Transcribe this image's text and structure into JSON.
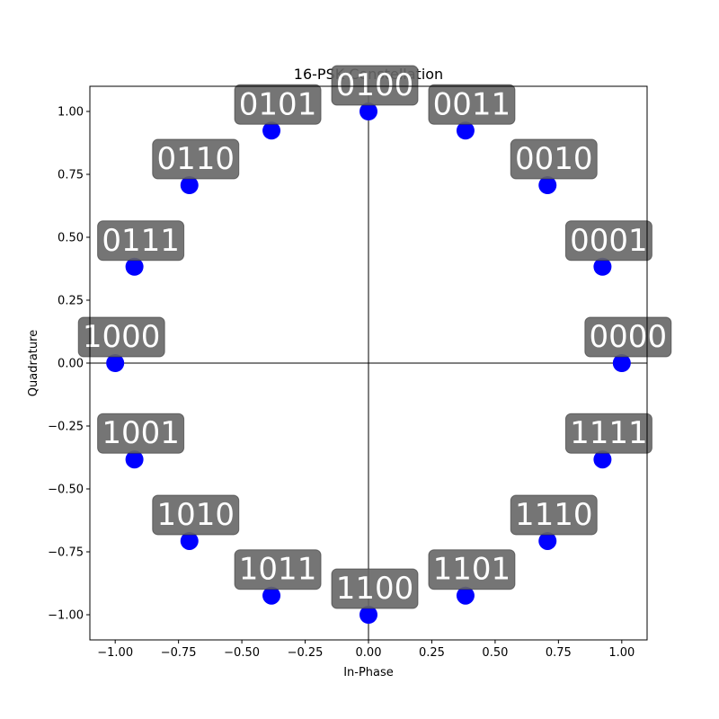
{
  "chart_data": {
    "type": "scatter",
    "title": "16-PSK Constellation",
    "xlabel": "In-Phase",
    "ylabel": "Quadrature",
    "xlim": [
      -1.1,
      1.1
    ],
    "ylim": [
      -1.1,
      1.1
    ],
    "xticks": [
      "−1.00",
      "−0.75",
      "−0.50",
      "−0.25",
      "0.00",
      "0.25",
      "0.50",
      "0.75",
      "1.00"
    ],
    "yticks": [
      "−1.00",
      "−0.75",
      "−0.50",
      "−0.25",
      "0.00",
      "0.25",
      "0.50",
      "0.75",
      "1.00"
    ],
    "grid": false,
    "axis_lines_at_zero": true,
    "point_color": "#0000ff",
    "label_box_color": "#666666",
    "points": [
      {
        "x": 1.0,
        "y": 0.0,
        "label": "0000"
      },
      {
        "x": 0.924,
        "y": 0.383,
        "label": "0001"
      },
      {
        "x": 0.707,
        "y": 0.707,
        "label": "0010"
      },
      {
        "x": 0.383,
        "y": 0.924,
        "label": "0011"
      },
      {
        "x": 0.0,
        "y": 1.0,
        "label": "0100"
      },
      {
        "x": -0.383,
        "y": 0.924,
        "label": "0101"
      },
      {
        "x": -0.707,
        "y": 0.707,
        "label": "0110"
      },
      {
        "x": -0.924,
        "y": 0.383,
        "label": "0111"
      },
      {
        "x": -1.0,
        "y": 0.0,
        "label": "1000"
      },
      {
        "x": -0.924,
        "y": -0.383,
        "label": "1001"
      },
      {
        "x": -0.707,
        "y": -0.707,
        "label": "1010"
      },
      {
        "x": -0.383,
        "y": -0.924,
        "label": "1011"
      },
      {
        "x": 0.0,
        "y": -1.0,
        "label": "1100"
      },
      {
        "x": 0.383,
        "y": -0.924,
        "label": "1101"
      },
      {
        "x": 0.707,
        "y": -0.707,
        "label": "1110"
      },
      {
        "x": 0.924,
        "y": -0.383,
        "label": "1111"
      }
    ]
  }
}
